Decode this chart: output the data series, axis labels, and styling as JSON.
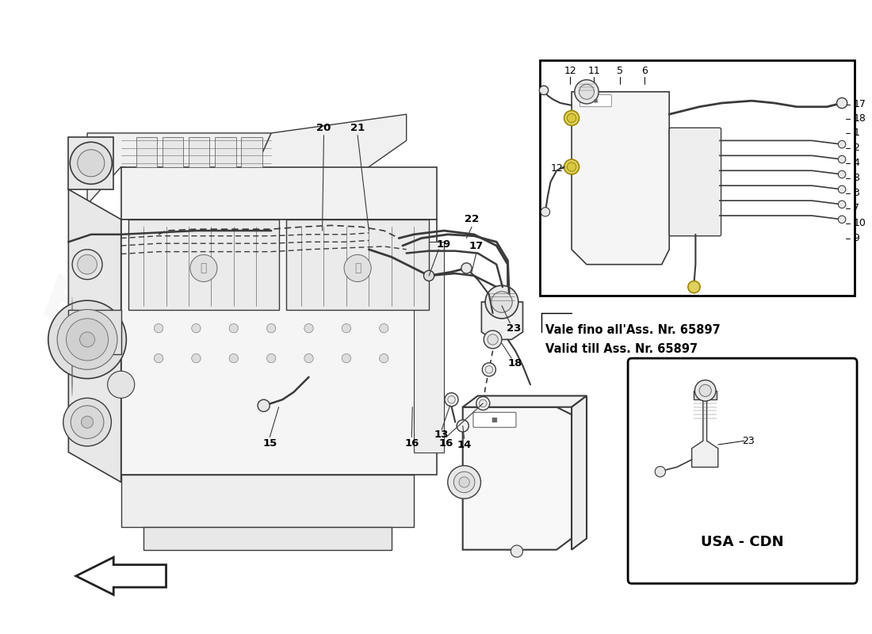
{
  "background_color": "#ffffff",
  "watermark_text": "a passion for parts since 1994",
  "watermark_color": "#c8b84a",
  "watermark_alpha": 0.5,
  "note_text1": "Vale fino all'Ass. Nr. 65897",
  "note_text2": "Valid till Ass. Nr. 65897",
  "usa_cdn_text": "USA - CDN",
  "text_color": "#000000",
  "line_color": "#3a3a3a",
  "light_line": "#666666",
  "part_label_fs": 9,
  "note_fs": 10,
  "usa_fs": 12
}
